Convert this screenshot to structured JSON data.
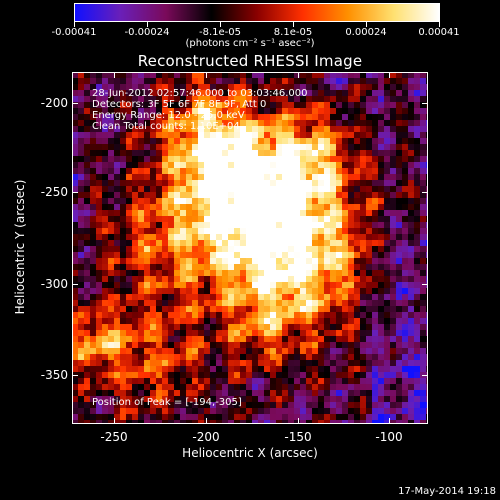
{
  "colorbar": {
    "tick_labels": [
      "-0.00041",
      "-0.00024",
      "-8.1e-05",
      "8.1e-05",
      "0.00024",
      "0.00041"
    ],
    "units": "(photons cm⁻² s⁻¹ asec⁻²)",
    "palette": [
      "#1010ff",
      "#6a1fb8",
      "#7a0a5a",
      "#000000",
      "#8a0000",
      "#ff3000",
      "#ff9000",
      "#ffe070",
      "#ffffff"
    ]
  },
  "title": "Reconstructed RHESSI Image",
  "annotations": {
    "time": "28-Jun-2012 02:57:46.000 to 03:03:46.000",
    "detectors": "Detectors: 3F 5F 6F 7F 8F 9F, Att 0",
    "energy": "Energy Range: 12.0 - 25.0 keV",
    "clean": "Clean    Total counts: 1.10E+04",
    "peak": "Position of Peak = [-194,-305]"
  },
  "axes": {
    "xlabel": "Heliocentric X (arcsec)",
    "ylabel": "Heliocentric Y (arcsec)",
    "xticks": [
      "-250",
      "-200",
      "-150",
      "-100"
    ],
    "yticks": [
      "-200",
      "-250",
      "-300",
      "-350"
    ],
    "xlim": [
      -272,
      -80
    ],
    "ylim": [
      -378,
      -186
    ]
  },
  "footer": "17-May-2014 19:18"
}
